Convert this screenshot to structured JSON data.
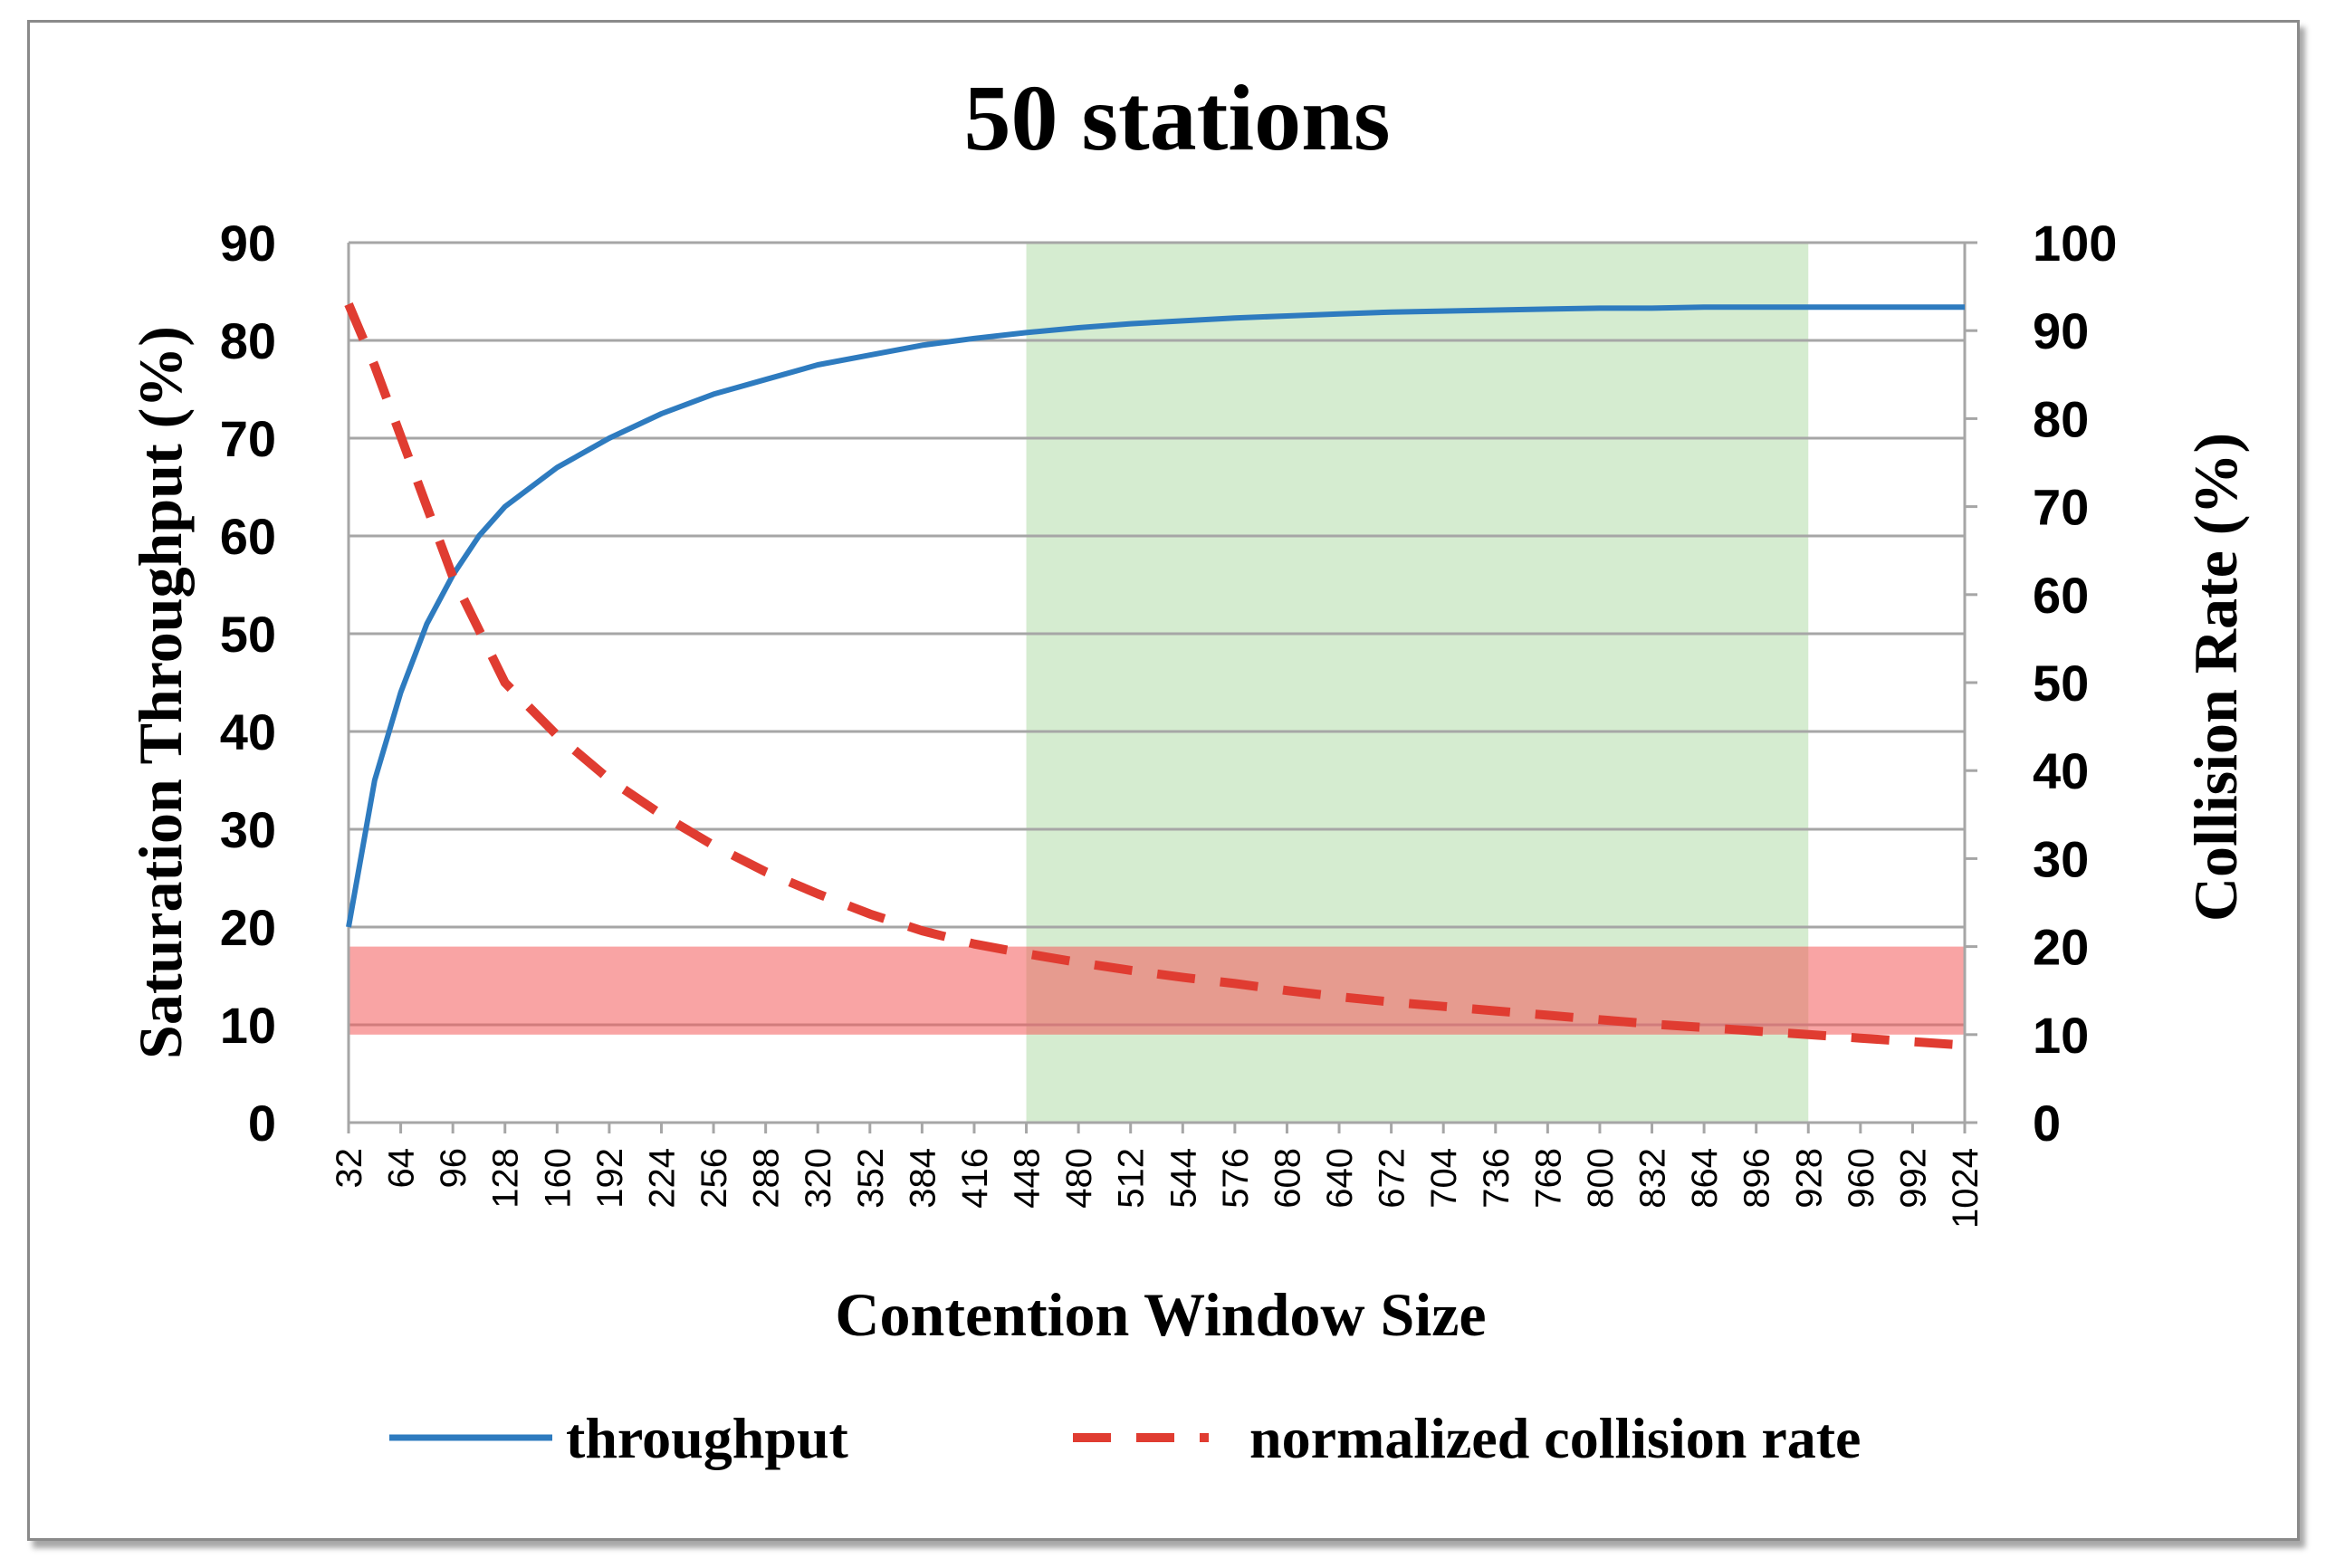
{
  "chart_data": {
    "type": "line",
    "title": "50 stations",
    "xlabel": "Contention Window Size",
    "ylabel_left": "Saturation Throughput (%)",
    "ylabel_right": "Collision Rate (%)",
    "x_ticks": [
      32,
      64,
      96,
      128,
      160,
      192,
      224,
      256,
      288,
      320,
      352,
      384,
      416,
      448,
      480,
      512,
      544,
      576,
      608,
      640,
      672,
      704,
      736,
      768,
      800,
      832,
      864,
      896,
      928,
      960,
      992,
      1024
    ],
    "xlim": [
      32,
      1024
    ],
    "ylim_left": [
      0,
      90
    ],
    "yticks_left": [
      0,
      10,
      20,
      30,
      40,
      50,
      60,
      70,
      80,
      90
    ],
    "ylim_right": [
      0,
      100
    ],
    "yticks_right": [
      0,
      10,
      20,
      30,
      40,
      50,
      60,
      70,
      80,
      90,
      100
    ],
    "grid": true,
    "legend_position": "bottom",
    "series": [
      {
        "name": "throughput",
        "axis": "left",
        "style": "solid",
        "color": "#2e7bbf",
        "x": [
          32,
          48,
          64,
          80,
          96,
          112,
          128,
          160,
          192,
          224,
          256,
          288,
          320,
          352,
          384,
          416,
          448,
          480,
          512,
          544,
          576,
          608,
          640,
          672,
          704,
          736,
          768,
          800,
          832,
          864,
          896,
          928,
          960,
          992,
          1024
        ],
        "values": [
          20,
          35,
          44,
          51,
          56,
          60,
          63,
          67,
          70,
          72.5,
          74.5,
          76,
          77.5,
          78.5,
          79.5,
          80.2,
          80.8,
          81.3,
          81.7,
          82,
          82.3,
          82.5,
          82.7,
          82.9,
          83,
          83.1,
          83.2,
          83.3,
          83.3,
          83.4,
          83.4,
          83.4,
          83.4,
          83.4,
          83.4
        ]
      },
      {
        "name": "normalized collision rate",
        "axis": "right",
        "style": "dashed",
        "color": "#e03c31",
        "x": [
          32,
          48,
          64,
          80,
          96,
          112,
          128,
          160,
          192,
          224,
          256,
          288,
          320,
          352,
          384,
          416,
          448,
          480,
          512,
          544,
          576,
          608,
          640,
          672,
          704,
          736,
          768,
          800,
          832,
          864,
          896,
          928,
          960,
          992,
          1024
        ],
        "values": [
          93,
          86,
          78,
          70,
          62,
          56,
          50,
          44,
          39,
          35,
          31.5,
          28.5,
          26,
          23.7,
          21.8,
          20.3,
          19.2,
          18.2,
          17.3,
          16.5,
          15.8,
          15,
          14.3,
          13.7,
          13.2,
          12.7,
          12.2,
          11.7,
          11.2,
          10.8,
          10.4,
          10,
          9.6,
          9.2,
          8.8
        ]
      }
    ],
    "shaded_regions": [
      {
        "axis": "left",
        "x": [
          448,
          928
        ],
        "y": [
          0,
          90
        ],
        "color": "#d5ecd0"
      },
      {
        "axis": "right",
        "x": [
          32,
          1024
        ],
        "y": [
          10,
          20
        ],
        "color": "#f45a5a",
        "opacity": 0.55
      }
    ]
  }
}
